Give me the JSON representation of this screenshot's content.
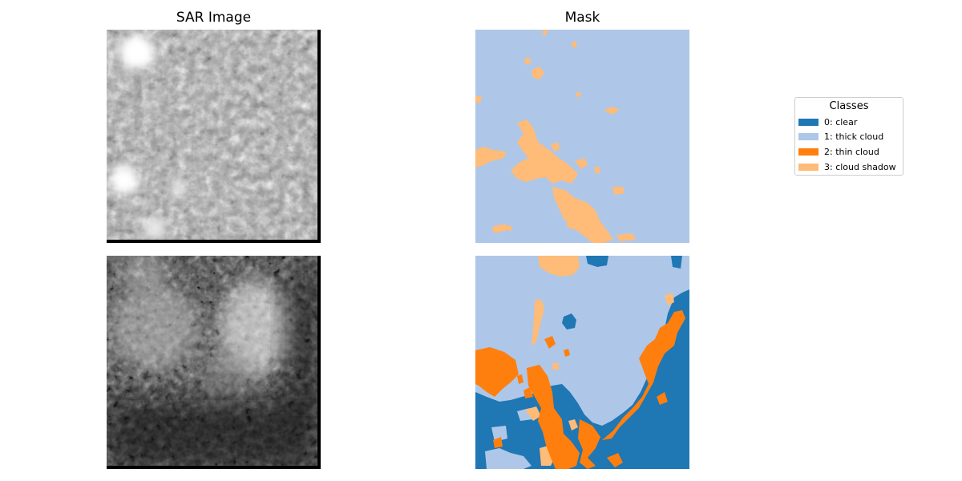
{
  "titles": {
    "sar": "SAR Image",
    "mask": "Mask"
  },
  "legend": {
    "title": "Classes",
    "items": [
      {
        "label": "0: clear",
        "color": "#1f77b4"
      },
      {
        "label": "1: thick cloud",
        "color": "#aec7e8"
      },
      {
        "label": "2: thin cloud",
        "color": "#ff7f0e"
      },
      {
        "label": "3: cloud shadow",
        "color": "#ffbb78"
      }
    ]
  }
}
